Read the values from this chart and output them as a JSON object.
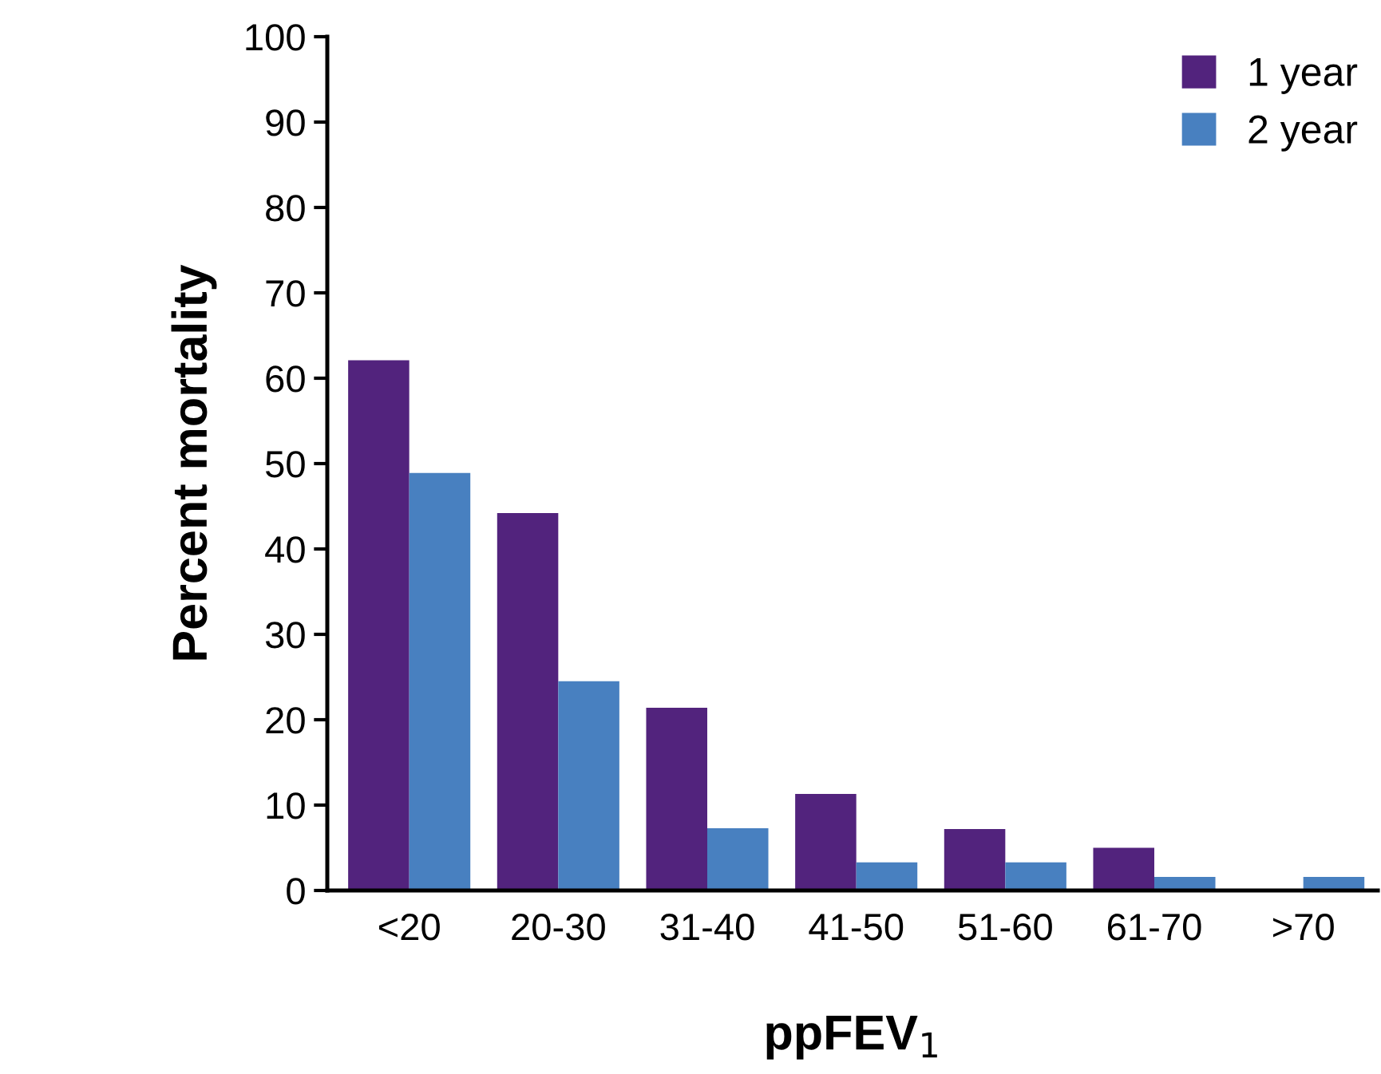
{
  "chart_data": {
    "type": "bar",
    "xlabel": "ppFEV$_{1}$",
    "ylabel": "Percent mortality",
    "categories": [
      "<20",
      "20-30",
      "31-40",
      "41-50",
      "51-60",
      "61-70",
      ">70"
    ],
    "series": [
      {
        "name": "1 year",
        "color": "#52237d",
        "values": [
          62.1,
          44.2,
          21.4,
          11.3,
          7.2,
          5.0,
          0
        ]
      },
      {
        "name": "2 year",
        "color": "#4880c0",
        "values": [
          48.9,
          24.5,
          7.3,
          3.3,
          3.3,
          1.6,
          1.6
        ]
      }
    ],
    "ylim": [
      0,
      100
    ],
    "yticks": [
      0,
      10,
      20,
      30,
      40,
      50,
      60,
      70,
      80,
      90,
      100
    ],
    "grid": false,
    "legend": "top right"
  }
}
